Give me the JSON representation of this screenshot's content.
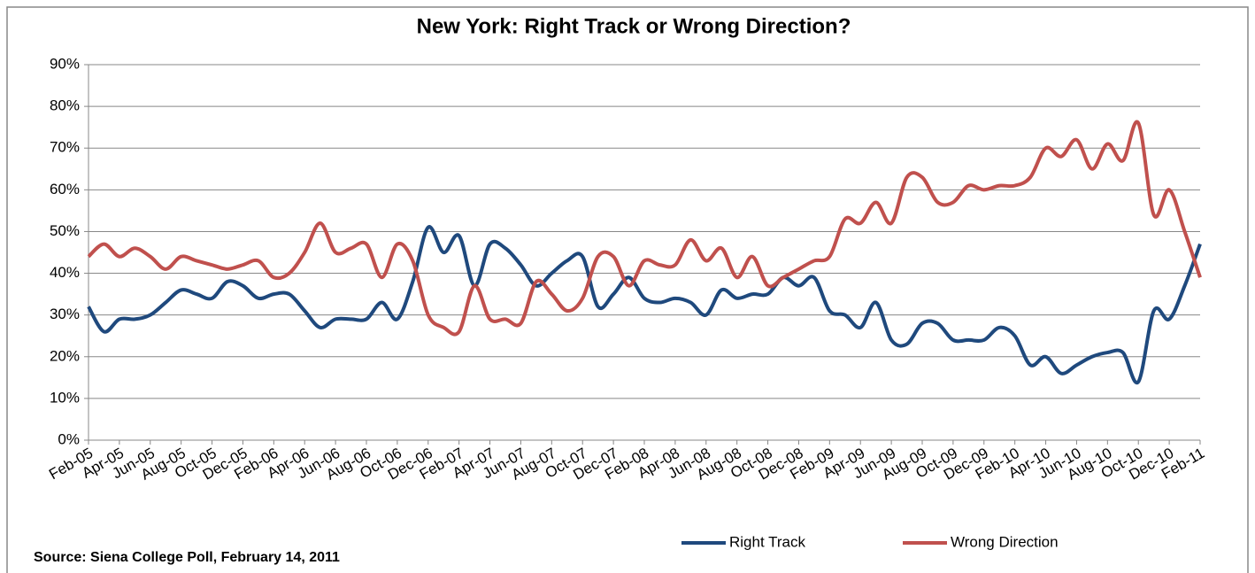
{
  "chart_data": {
    "type": "line",
    "title": "New York: Right Track or Wrong Direction?",
    "source": "Source: Siena College Poll,  February 14, 2011",
    "categories": [
      "Feb-05",
      null,
      "Apr-05",
      null,
      "Jun-05",
      null,
      "Aug-05",
      null,
      "Oct-05",
      null,
      "Dec-05",
      null,
      "Feb-06",
      null,
      "Apr-06",
      null,
      "Jun-06",
      null,
      "Aug-06",
      null,
      "Oct-06",
      null,
      "Dec-06",
      null,
      "Feb-07",
      null,
      "Apr-07",
      null,
      "Jun-07",
      null,
      "Aug-07",
      null,
      "Oct-07",
      null,
      "Dec-07",
      null,
      "Feb-08",
      null,
      "Apr-08",
      null,
      "Jun-08",
      null,
      "Aug-08",
      null,
      "Oct-08",
      null,
      "Dec-08",
      null,
      "Feb-09",
      null,
      "Apr-09",
      null,
      "Jun-09",
      null,
      "Aug-09",
      null,
      "Oct-09",
      null,
      "Dec-09",
      null,
      "Feb-10",
      null,
      "Apr-10",
      null,
      "Jun-10",
      null,
      "Aug-10",
      null,
      "Oct-10",
      null,
      "Dec-10",
      null,
      "Feb-11"
    ],
    "series": [
      {
        "name": "Right Track",
        "color": "#1f497d",
        "values": [
          32,
          26,
          29,
          29,
          30,
          33,
          36,
          35,
          34,
          38,
          37,
          34,
          35,
          35,
          31,
          27,
          29,
          29,
          29,
          33,
          29,
          38,
          51,
          45,
          49,
          37,
          47,
          46,
          42,
          37,
          40,
          43,
          44,
          32,
          35,
          39,
          34,
          33,
          34,
          33,
          30,
          36,
          34,
          35,
          35,
          39,
          37,
          39,
          31,
          30,
          27,
          33,
          24,
          23,
          28,
          28,
          24,
          24,
          24,
          27,
          25,
          18,
          20,
          16,
          18,
          20,
          21,
          21,
          14,
          31,
          29,
          37,
          47
        ]
      },
      {
        "name": "Wrong Direction",
        "color": "#c0504d",
        "values": [
          44,
          47,
          44,
          46,
          44,
          41,
          44,
          43,
          42,
          41,
          42,
          43,
          39,
          40,
          45,
          52,
          45,
          46,
          47,
          39,
          47,
          43,
          30,
          27,
          26,
          37,
          29,
          29,
          28,
          38,
          35,
          31,
          34,
          44,
          44,
          37,
          43,
          42,
          42,
          48,
          43,
          46,
          39,
          44,
          37,
          39,
          41,
          43,
          44,
          53,
          52,
          57,
          52,
          63,
          63,
          57,
          57,
          61,
          60,
          61,
          61,
          63,
          70,
          68,
          72,
          65,
          71,
          67,
          76,
          54,
          60,
          50,
          39
        ]
      }
    ],
    "ylim": [
      0,
      90
    ],
    "yticks": [
      {
        "value": 0,
        "label": "0%"
      },
      {
        "value": 10,
        "label": "10%"
      },
      {
        "value": 20,
        "label": "20%"
      },
      {
        "value": 30,
        "label": "30%"
      },
      {
        "value": 40,
        "label": "40%"
      },
      {
        "value": 50,
        "label": "50%"
      },
      {
        "value": 60,
        "label": "60%"
      },
      {
        "value": 70,
        "label": "70%"
      },
      {
        "value": 80,
        "label": "80%"
      },
      {
        "value": 90,
        "label": "90%"
      }
    ],
    "grid": true
  }
}
